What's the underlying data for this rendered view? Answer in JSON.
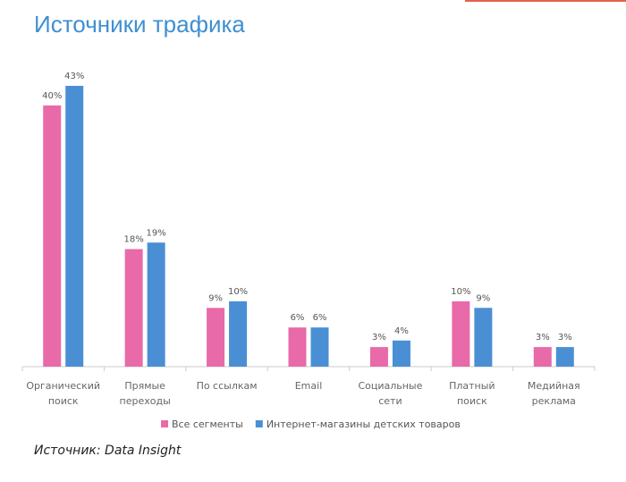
{
  "chart_data": {
    "type": "bar",
    "title": "Источники трафика",
    "categories": [
      "Органический поиск",
      "Прямые переходы",
      "По ссылкам",
      "Email",
      "Социальные сети",
      "Платный поиск",
      "Медийная реклама"
    ],
    "series": [
      {
        "name": "Все сегменты",
        "color": "#e96aa8",
        "values": [
          40,
          18,
          9,
          6,
          3,
          10,
          3
        ],
        "value_labels": [
          "40%",
          "18%",
          "9%",
          "6%",
          "3%",
          "10%",
          "3%"
        ]
      },
      {
        "name": "Интернет-магазины детских товаров",
        "color": "#4a8fd4",
        "values": [
          43,
          19,
          10,
          6,
          4,
          9,
          3
        ],
        "value_labels": [
          "43%",
          "19%",
          "10%",
          "6%",
          "4%",
          "9%",
          "3%"
        ]
      }
    ],
    "source": "Источник: Data Insight"
  }
}
